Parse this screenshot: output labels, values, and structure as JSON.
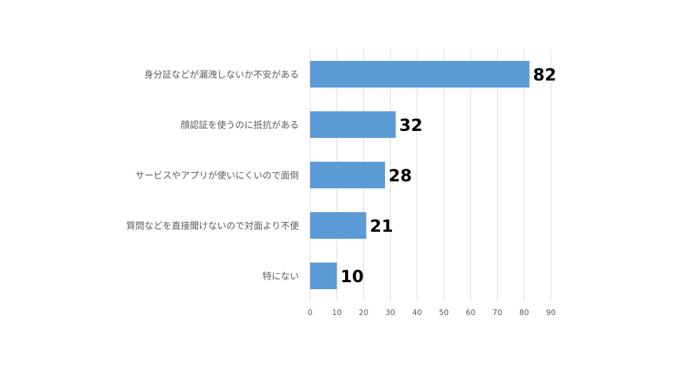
{
  "chart_data": {
    "type": "bar",
    "orientation": "horizontal",
    "categories": [
      "身分証などが漏洩しないか不安がある",
      "顔認証を使うのに抵抗がある",
      "サービスやアプリが使いにくいので面倒",
      "質問などを直接聞けないので対面より不便",
      "特にない"
    ],
    "values": [
      82,
      32,
      28,
      21,
      10
    ],
    "xlim": [
      0,
      90
    ],
    "xticks": [
      "0",
      "10",
      "20",
      "30",
      "40",
      "50",
      "60",
      "70",
      "80",
      "90"
    ],
    "grid": true,
    "legend": "none",
    "bar_color": "#5b9bd5",
    "data_label_color": "#000000",
    "gridline_color": "#d9d9d9"
  }
}
